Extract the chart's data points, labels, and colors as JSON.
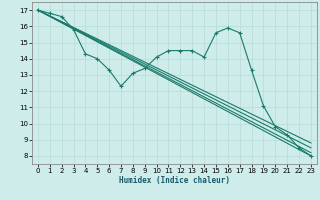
{
  "xlabel": "Humidex (Indice chaleur)",
  "bg_color": "#ceecea",
  "line_color": "#1a7a6a",
  "grid_color": "#b8dbd8",
  "xlim": [
    -0.5,
    23.5
  ],
  "ylim": [
    7.5,
    17.5
  ],
  "xticks": [
    0,
    1,
    2,
    3,
    4,
    5,
    6,
    7,
    8,
    9,
    10,
    11,
    12,
    13,
    14,
    15,
    16,
    17,
    18,
    19,
    20,
    21,
    22,
    23
  ],
  "yticks": [
    8,
    9,
    10,
    11,
    12,
    13,
    14,
    15,
    16,
    17
  ],
  "curves": [
    {
      "x": [
        0,
        1,
        2,
        3,
        4,
        5,
        6,
        7,
        8,
        9,
        10,
        11,
        12,
        13,
        14,
        15,
        16,
        17,
        18,
        19,
        20,
        21,
        22,
        23
      ],
      "y": [
        17,
        16.8,
        16.6,
        15.8,
        14.3,
        14.0,
        13.3,
        12.3,
        13.1,
        13.4,
        14.1,
        14.5,
        14.5,
        14.5,
        14.1,
        15.6,
        15.9,
        15.6,
        13.3,
        11.1,
        9.8,
        9.3,
        8.5,
        8.0
      ],
      "marker": true
    },
    {
      "x": [
        0,
        23
      ],
      "y": [
        17,
        8.0
      ],
      "marker": false
    },
    {
      "x": [
        0,
        23
      ],
      "y": [
        17,
        8.2
      ],
      "marker": false
    },
    {
      "x": [
        0,
        23
      ],
      "y": [
        17,
        8.5
      ],
      "marker": false
    },
    {
      "x": [
        0,
        23
      ],
      "y": [
        17,
        8.8
      ],
      "marker": false
    }
  ]
}
